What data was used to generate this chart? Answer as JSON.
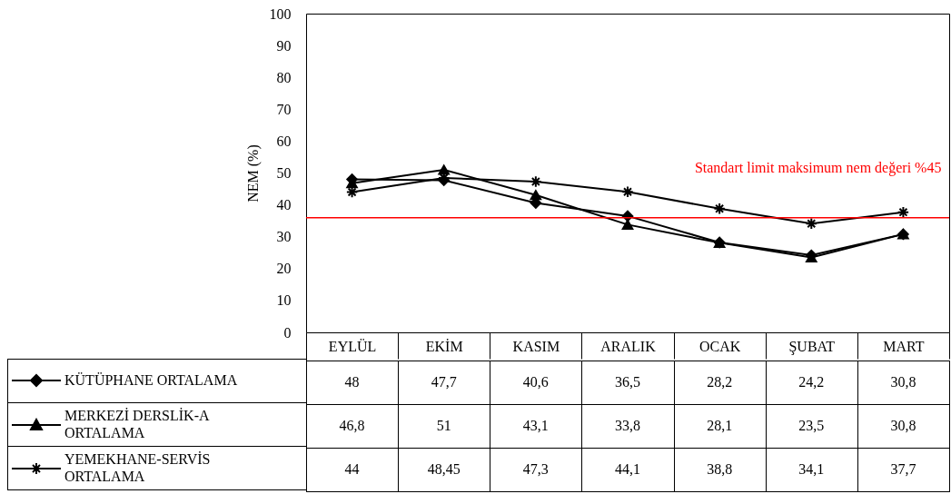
{
  "chart_data": {
    "type": "line",
    "ylabel": "NEM (%)",
    "categories": [
      "EYLÜL",
      "EKİM",
      "KASIM",
      "ARALIK",
      "OCAK",
      "ŞUBAT",
      "MART"
    ],
    "series": [
      {
        "name": "KÜTÜPHANE ORTALAMA",
        "color": "#000000",
        "marker": "diamond",
        "values": [
          48,
          47.7,
          40.6,
          36.5,
          28.2,
          24.2,
          30.8
        ],
        "value_labels": [
          "48",
          "47,7",
          "40,6",
          "36,5",
          "28,2",
          "24,2",
          "30,8"
        ]
      },
      {
        "name": "MERKEZİ DERSLİK-A ORTALAMA",
        "color": "#000000",
        "marker": "triangle",
        "values": [
          46.8,
          51,
          43.1,
          33.8,
          28.1,
          23.5,
          30.8
        ],
        "value_labels": [
          "46,8",
          "51",
          "43,1",
          "33,8",
          "28,1",
          "23,5",
          "30,8"
        ]
      },
      {
        "name": "YEMEKHANE-SERVİS ORTALAMA",
        "color": "#000000",
        "marker": "cross",
        "values": [
          44,
          48.45,
          47.3,
          44.1,
          38.8,
          34.1,
          37.7
        ],
        "value_labels": [
          "44",
          "48,45",
          "47,3",
          "44,1",
          "38,8",
          "34,1",
          "37,7"
        ]
      }
    ],
    "ylim": [
      0,
      100
    ],
    "yticks": [
      0,
      10,
      20,
      30,
      40,
      50,
      60,
      70,
      80,
      90,
      100
    ],
    "grid": false,
    "legend": "bottom left",
    "line_style": "solid",
    "ref_lines": [
      {
        "axis": "y",
        "value": 36,
        "label": "Standart limit maksimum nem değeri %45",
        "color": "#ff0000"
      }
    ]
  }
}
